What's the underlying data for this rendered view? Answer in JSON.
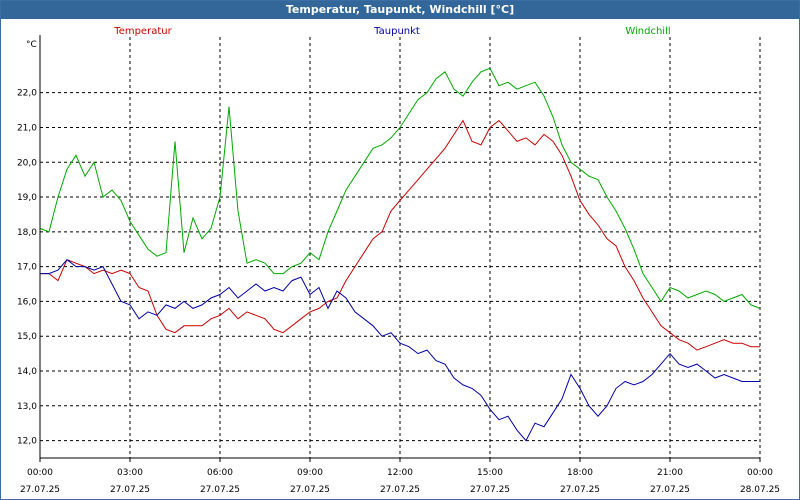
{
  "title": "Temperatur, Taupunkt, Windchill [°C]",
  "chart_data": {
    "type": "line",
    "unit": "°C",
    "ylim": [
      11.5,
      23.6
    ],
    "yticks": [
      "12,0",
      "13,0",
      "14,0",
      "15,0",
      "16,0",
      "17,0",
      "18,0",
      "19,0",
      "20,0",
      "21,0",
      "22,0"
    ],
    "xlim": [
      0,
      24
    ],
    "xticks": [
      {
        "time": "00:00",
        "date": "27.07.25"
      },
      {
        "time": "03:00",
        "date": "27.07.25"
      },
      {
        "time": "06:00",
        "date": "27.07.25"
      },
      {
        "time": "09:00",
        "date": "27.07.25"
      },
      {
        "time": "12:00",
        "date": "27.07.25"
      },
      {
        "time": "15:00",
        "date": "27.07.25"
      },
      {
        "time": "18:00",
        "date": "27.07.25"
      },
      {
        "time": "21:00",
        "date": "27.07.25"
      },
      {
        "time": "00:00",
        "date": "28.07.25"
      }
    ],
    "grid": true,
    "legend_position": "top",
    "series": [
      {
        "name": "Temperatur",
        "color": "#cc0000",
        "x": [
          0,
          0.3,
          0.6,
          0.9,
          1.2,
          1.5,
          1.8,
          2.1,
          2.4,
          2.7,
          3,
          3.3,
          3.6,
          3.9,
          4.2,
          4.5,
          4.8,
          5.1,
          5.4,
          5.7,
          6,
          6.3,
          6.6,
          6.9,
          7.2,
          7.5,
          7.8,
          8.1,
          8.4,
          8.7,
          9,
          9.3,
          9.6,
          9.9,
          10.2,
          10.5,
          10.8,
          11.1,
          11.4,
          11.7,
          12,
          12.3,
          12.6,
          12.9,
          13.2,
          13.5,
          13.8,
          14.1,
          14.4,
          14.7,
          15,
          15.3,
          15.6,
          15.9,
          16.2,
          16.5,
          16.8,
          17.1,
          17.4,
          17.7,
          18,
          18.3,
          18.6,
          18.9,
          19.2,
          19.5,
          19.8,
          20.1,
          20.4,
          20.7,
          21,
          21.3,
          21.6,
          21.9,
          22.2,
          22.5,
          22.8,
          23.1,
          23.4,
          23.7,
          24
        ],
        "values": [
          16.8,
          16.8,
          16.6,
          17.2,
          17.1,
          17.0,
          16.8,
          16.9,
          16.8,
          16.9,
          16.8,
          16.4,
          16.3,
          15.6,
          15.2,
          15.1,
          15.3,
          15.3,
          15.3,
          15.5,
          15.6,
          15.8,
          15.5,
          15.7,
          15.6,
          15.5,
          15.2,
          15.1,
          15.3,
          15.5,
          15.7,
          15.8,
          16.0,
          16.1,
          16.6,
          17.0,
          17.4,
          17.8,
          18.0,
          18.6,
          18.9,
          19.2,
          19.5,
          19.8,
          20.1,
          20.4,
          20.8,
          21.2,
          20.6,
          20.5,
          21.0,
          21.2,
          20.9,
          20.6,
          20.7,
          20.5,
          20.8,
          20.6,
          20.2,
          19.6,
          18.9,
          18.5,
          18.2,
          17.8,
          17.6,
          17.0,
          16.6,
          16.1,
          15.7,
          15.3,
          15.1,
          14.9,
          14.8,
          14.6,
          14.7,
          14.8,
          14.9,
          14.8,
          14.8,
          14.7,
          14.7
        ]
      },
      {
        "name": "Taupunkt",
        "color": "#0000aa",
        "x": [
          0,
          0.3,
          0.6,
          0.9,
          1.2,
          1.5,
          1.8,
          2.1,
          2.4,
          2.7,
          3,
          3.3,
          3.6,
          3.9,
          4.2,
          4.5,
          4.8,
          5.1,
          5.4,
          5.7,
          6,
          6.3,
          6.6,
          6.9,
          7.2,
          7.5,
          7.8,
          8.1,
          8.4,
          8.7,
          9,
          9.3,
          9.6,
          9.9,
          10.2,
          10.5,
          10.8,
          11.1,
          11.4,
          11.7,
          12,
          12.3,
          12.6,
          12.9,
          13.2,
          13.5,
          13.8,
          14.1,
          14.4,
          14.7,
          15,
          15.3,
          15.6,
          15.9,
          16.2,
          16.5,
          16.8,
          17.1,
          17.4,
          17.7,
          18,
          18.3,
          18.6,
          18.9,
          19.2,
          19.5,
          19.8,
          20.1,
          20.4,
          20.7,
          21,
          21.3,
          21.6,
          21.9,
          22.2,
          22.5,
          22.8,
          23.1,
          23.4,
          23.7,
          24
        ],
        "values": [
          16.8,
          16.8,
          16.9,
          17.2,
          17.0,
          17.0,
          16.9,
          17.0,
          16.5,
          16.0,
          15.9,
          15.5,
          15.7,
          15.6,
          15.9,
          15.8,
          16.0,
          15.8,
          15.9,
          16.1,
          16.2,
          16.4,
          16.1,
          16.3,
          16.5,
          16.3,
          16.4,
          16.3,
          16.6,
          16.7,
          16.2,
          16.4,
          15.8,
          16.3,
          16.1,
          15.7,
          15.5,
          15.3,
          15.0,
          15.1,
          14.8,
          14.7,
          14.5,
          14.6,
          14.3,
          14.2,
          13.8,
          13.6,
          13.5,
          13.3,
          12.9,
          12.6,
          12.7,
          12.3,
          12.0,
          12.5,
          12.4,
          12.8,
          13.2,
          13.9,
          13.5,
          13.0,
          12.7,
          13.0,
          13.5,
          13.7,
          13.6,
          13.7,
          13.9,
          14.2,
          14.5,
          14.2,
          14.1,
          14.2,
          14.0,
          13.8,
          13.9,
          13.8,
          13.7,
          13.7,
          13.7
        ]
      },
      {
        "name": "Windchill",
        "color": "#00aa00",
        "x": [
          0,
          0.3,
          0.6,
          0.9,
          1.2,
          1.5,
          1.8,
          2.1,
          2.4,
          2.7,
          3,
          3.3,
          3.6,
          3.9,
          4.2,
          4.5,
          4.8,
          5.1,
          5.4,
          5.7,
          6,
          6.3,
          6.6,
          6.9,
          7.2,
          7.5,
          7.8,
          8.1,
          8.4,
          8.7,
          9,
          9.3,
          9.6,
          9.9,
          10.2,
          10.5,
          10.8,
          11.1,
          11.4,
          11.7,
          12,
          12.3,
          12.6,
          12.9,
          13.2,
          13.5,
          13.8,
          14.1,
          14.4,
          14.7,
          15,
          15.3,
          15.6,
          15.9,
          16.2,
          16.5,
          16.8,
          17.1,
          17.4,
          17.7,
          18,
          18.3,
          18.6,
          18.9,
          19.2,
          19.5,
          19.8,
          20.1,
          20.4,
          20.7,
          21,
          21.3,
          21.6,
          21.9,
          22.2,
          22.5,
          22.8,
          23.1,
          23.4,
          23.7,
          24
        ],
        "values": [
          18.1,
          18.0,
          19.0,
          19.8,
          20.2,
          19.6,
          20.0,
          19.0,
          19.2,
          18.9,
          18.3,
          17.9,
          17.5,
          17.3,
          17.4,
          20.6,
          17.4,
          18.4,
          17.8,
          18.1,
          19.0,
          21.6,
          18.6,
          17.1,
          17.2,
          17.1,
          16.8,
          16.8,
          17.0,
          17.1,
          17.4,
          17.2,
          18.0,
          18.6,
          19.2,
          19.6,
          20.0,
          20.4,
          20.5,
          20.7,
          21.0,
          21.4,
          21.8,
          22.0,
          22.4,
          22.6,
          22.1,
          21.9,
          22.3,
          22.6,
          22.7,
          22.2,
          22.3,
          22.1,
          22.2,
          22.3,
          21.9,
          21.3,
          20.5,
          20.0,
          19.8,
          19.6,
          19.5,
          19.0,
          18.6,
          18.1,
          17.5,
          16.8,
          16.4,
          16.0,
          16.4,
          16.3,
          16.1,
          16.2,
          16.3,
          16.2,
          16.0,
          16.1,
          16.2,
          15.9,
          15.8
        ]
      }
    ]
  }
}
